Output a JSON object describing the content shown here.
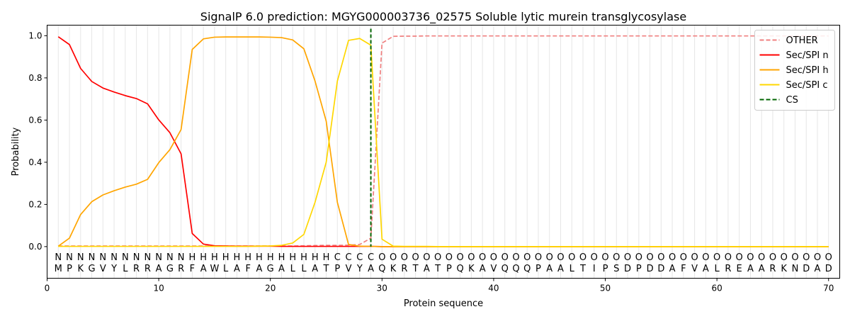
{
  "chart_data": {
    "type": "line",
    "title": "SignalP 6.0 prediction: MGYG000003736_02575 Soluble lytic murein transglycosylase",
    "xlabel": "Protein sequence",
    "ylabel": "Probability",
    "xlim": [
      0,
      71
    ],
    "ylim": [
      -0.15,
      1.05
    ],
    "xticks": [
      0,
      10,
      20,
      30,
      40,
      50,
      60,
      70
    ],
    "yticks": [
      0.0,
      0.2,
      0.4,
      0.6,
      0.8,
      1.0
    ],
    "grid": "vertical lines at each residue",
    "legend_position": "top-right",
    "sequence": [
      "M",
      "P",
      "K",
      "G",
      "V",
      "Y",
      "L",
      "R",
      "R",
      "A",
      "G",
      "R",
      "F",
      "A",
      "W",
      "L",
      "A",
      "F",
      "A",
      "G",
      "A",
      "L",
      "L",
      "A",
      "T",
      "P",
      "V",
      "Y",
      "A",
      "Q",
      "K",
      "R",
      "T",
      "A",
      "T",
      "P",
      "Q",
      "K",
      "A",
      "V",
      "Q",
      "Q",
      "Q",
      "P",
      "A",
      "A",
      "L",
      "T",
      "I",
      "P",
      "S",
      "D",
      "P",
      "D",
      "D",
      "A",
      "F",
      "V",
      "A",
      "L",
      "R",
      "E",
      "A",
      "A",
      "R",
      "K",
      "N",
      "D",
      "A",
      "D"
    ],
    "labels": [
      "N",
      "N",
      "N",
      "N",
      "N",
      "N",
      "N",
      "N",
      "N",
      "N",
      "N",
      "N",
      "H",
      "H",
      "H",
      "H",
      "H",
      "H",
      "H",
      "H",
      "H",
      "H",
      "H",
      "H",
      "H",
      "C",
      "C",
      "C",
      "C",
      "O",
      "O",
      "O",
      "O",
      "O",
      "O",
      "O",
      "O",
      "O",
      "O",
      "O",
      "O",
      "O",
      "O",
      "O",
      "O",
      "O",
      "O",
      "O",
      "O",
      "O",
      "O",
      "O",
      "O",
      "O",
      "O",
      "O",
      "O",
      "O",
      "O",
      "O",
      "O",
      "O",
      "O",
      "O",
      "O",
      "O",
      "O",
      "O",
      "O",
      "O"
    ],
    "label_colors": {
      "N": "#ff0000",
      "H": "#ffa500",
      "C": "#ffd700",
      "O": "#808080"
    },
    "cleavage_site": 29,
    "series": [
      {
        "name": "OTHER",
        "color": "#f08080",
        "dash": true,
        "values": [
          0.003,
          0.003,
          0.003,
          0.003,
          0.003,
          0.003,
          0.003,
          0.003,
          0.003,
          0.003,
          0.003,
          0.003,
          0.003,
          0.003,
          0.003,
          0.003,
          0.003,
          0.003,
          0.003,
          0.003,
          0.003,
          0.003,
          0.004,
          0.005,
          0.006,
          0.006,
          0.007,
          0.01,
          0.04,
          0.965,
          0.997,
          0.998,
          0.998,
          0.999,
          0.999,
          0.999,
          0.999,
          0.999,
          0.999,
          0.999,
          0.999,
          0.999,
          0.999,
          0.999,
          0.999,
          0.999,
          0.999,
          0.999,
          0.999,
          0.999,
          0.999,
          0.999,
          0.999,
          0.999,
          0.999,
          0.999,
          0.999,
          0.999,
          0.999,
          0.999,
          0.999,
          0.999,
          0.999,
          0.999,
          0.999,
          0.999,
          0.999,
          0.999,
          0.999,
          0.999
        ]
      },
      {
        "name": "Sec/SPI n",
        "color": "#ff0000",
        "dash": false,
        "values": [
          0.995,
          0.958,
          0.845,
          0.783,
          0.752,
          0.733,
          0.716,
          0.702,
          0.677,
          0.601,
          0.54,
          0.44,
          0.062,
          0.012,
          0.004,
          0.003,
          0.002,
          0.002,
          0.002,
          0.002,
          0.001,
          0.001,
          0.001,
          0.001,
          0.001,
          0.001,
          0.001,
          0.001,
          0.001,
          0.0,
          0.0,
          0.0,
          0.0,
          0.0,
          0.0,
          0.0,
          0.0,
          0.0,
          0.0,
          0.0,
          0.0,
          0.0,
          0.0,
          0.0,
          0.0,
          0.0,
          0.0,
          0.0,
          0.0,
          0.0,
          0.0,
          0.0,
          0.0,
          0.0,
          0.0,
          0.0,
          0.0,
          0.0,
          0.0,
          0.0,
          0.0,
          0.0,
          0.0,
          0.0,
          0.0,
          0.0,
          0.0,
          0.0,
          0.0,
          0.0
        ]
      },
      {
        "name": "Sec/SPI h",
        "color": "#ffa500",
        "dash": false,
        "values": [
          0.002,
          0.04,
          0.152,
          0.213,
          0.245,
          0.265,
          0.282,
          0.296,
          0.319,
          0.398,
          0.46,
          0.555,
          0.935,
          0.985,
          0.993,
          0.994,
          0.994,
          0.994,
          0.994,
          0.993,
          0.991,
          0.98,
          0.938,
          0.785,
          0.595,
          0.21,
          0.01,
          0.002,
          0.001,
          0.0,
          0.0,
          0.0,
          0.0,
          0.0,
          0.0,
          0.0,
          0.0,
          0.0,
          0.0,
          0.0,
          0.0,
          0.0,
          0.0,
          0.0,
          0.0,
          0.0,
          0.0,
          0.0,
          0.0,
          0.0,
          0.0,
          0.0,
          0.0,
          0.0,
          0.0,
          0.0,
          0.0,
          0.0,
          0.0,
          0.0,
          0.0,
          0.0,
          0.0,
          0.0,
          0.0,
          0.0,
          0.0,
          0.0,
          0.0,
          0.0
        ]
      },
      {
        "name": "Sec/SPI c",
        "color": "#ffd700",
        "dash": false,
        "values": [
          0.001,
          0.001,
          0.001,
          0.001,
          0.001,
          0.001,
          0.001,
          0.001,
          0.001,
          0.001,
          0.001,
          0.001,
          0.001,
          0.001,
          0.001,
          0.001,
          0.001,
          0.001,
          0.002,
          0.003,
          0.006,
          0.017,
          0.058,
          0.21,
          0.4,
          0.785,
          0.978,
          0.987,
          0.955,
          0.035,
          0.002,
          0.001,
          0.001,
          0.001,
          0.0,
          0.0,
          0.0,
          0.0,
          0.0,
          0.0,
          0.0,
          0.0,
          0.0,
          0.0,
          0.0,
          0.0,
          0.0,
          0.0,
          0.0,
          0.0,
          0.0,
          0.0,
          0.0,
          0.0,
          0.0,
          0.0,
          0.0,
          0.0,
          0.0,
          0.0,
          0.0,
          0.0,
          0.0,
          0.0,
          0.0,
          0.0,
          0.0,
          0.0,
          0.0,
          0.0
        ]
      }
    ],
    "legend": [
      {
        "name": "OTHER",
        "color": "#f08080",
        "dash": true
      },
      {
        "name": "Sec/SPI n",
        "color": "#ff0000",
        "dash": false
      },
      {
        "name": "Sec/SPI h",
        "color": "#ffa500",
        "dash": false
      },
      {
        "name": "Sec/SPI c",
        "color": "#ffd700",
        "dash": false
      },
      {
        "name": "CS",
        "color": "#006400",
        "dash": true
      }
    ]
  }
}
